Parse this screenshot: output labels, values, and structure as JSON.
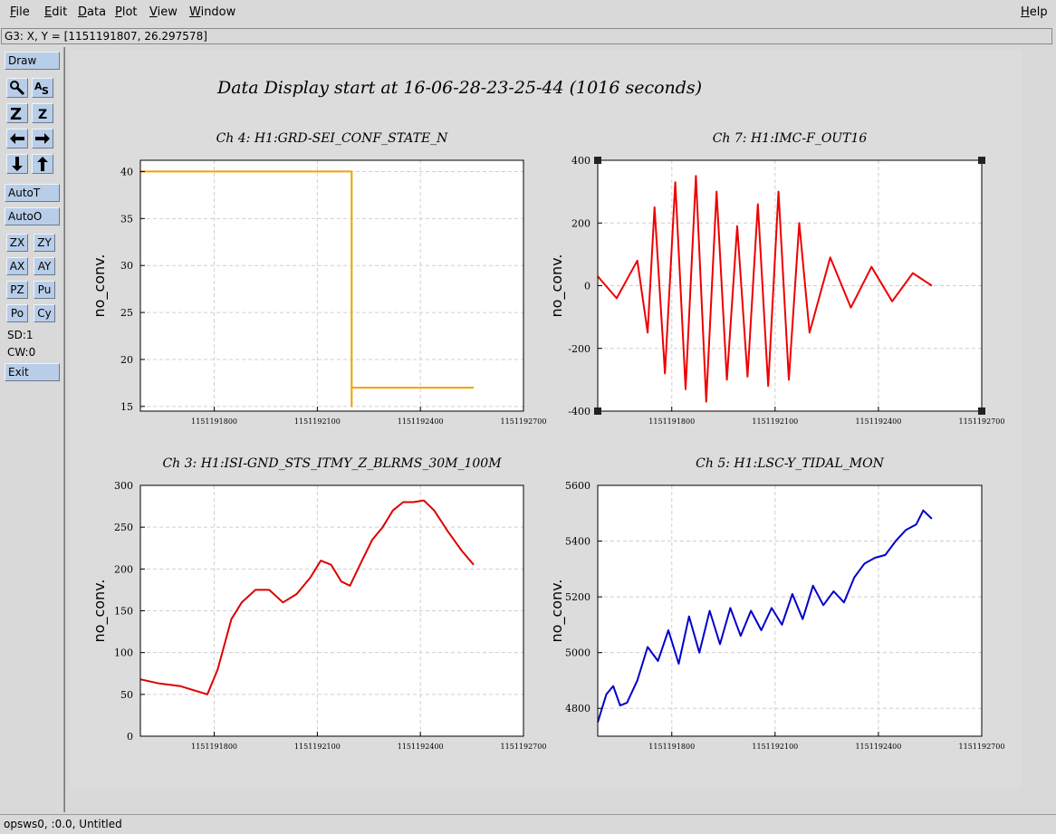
{
  "menu": {
    "items": [
      {
        "key": "F",
        "rest": "ile"
      },
      {
        "key": "E",
        "rest": "dit"
      },
      {
        "key": "D",
        "rest": "ata"
      },
      {
        "key": "P",
        "rest": "lot"
      },
      {
        "key": "V",
        "rest": "iew"
      },
      {
        "key": "W",
        "rest": "indow"
      }
    ],
    "help": {
      "key": "H",
      "rest": "elp"
    }
  },
  "coord_readout": "G3: X, Y = [1151191807, 26.297578]",
  "toolbar": {
    "draw": "Draw",
    "autot": "AutoT",
    "autoo": "AutoO",
    "zx": "ZX",
    "zy": "ZY",
    "ax": "AX",
    "ay": "AY",
    "pz": "PZ",
    "pu": "Pu",
    "po": "Po",
    "cy": "Cy",
    "sd": "SD:1",
    "cw": "CW:0",
    "exit": "Exit",
    "icons": [
      "zoom-icon",
      "autoscale-icon",
      "zoom-in-icon",
      "zoom-out-icon",
      "arrow-left-icon",
      "arrow-right-icon",
      "arrow-down-icon",
      "arrow-up-icon"
    ]
  },
  "display_title": "Data Display start at 16-06-28-23-25-44 (1016 seconds)",
  "status": "opsws0, :0.0, Untitled",
  "chart_data": [
    {
      "type": "line",
      "title": "Ch 4: H1:GRD-SEI_CONF_STATE_N",
      "ylabel": "no_conv.",
      "color": "#f2a000",
      "xlim": [
        1151191585,
        1151192700
      ],
      "ylim": [
        14.5,
        41.2
      ],
      "xticks": [
        1151191800,
        1151192100,
        1151192400,
        1151192700
      ],
      "yticks": [
        15,
        20,
        25,
        30,
        35,
        40
      ],
      "series": [
        {
          "x": [
            1151191585,
            1151192200,
            1151192200,
            1151192200,
            1151192555
          ],
          "y": [
            40,
            40,
            15,
            17,
            17
          ]
        }
      ]
    },
    {
      "type": "line",
      "title": "Ch 7: H1:IMC-F_OUT16",
      "ylabel": "no_conv.",
      "color": "#ee0000",
      "selected": true,
      "xlim": [
        1151191585,
        1151192700
      ],
      "ylim": [
        -400,
        400
      ],
      "xticks": [
        1151191800,
        1151192100,
        1151192400,
        1151192700
      ],
      "yticks": [
        -400,
        -200,
        0,
        200,
        400
      ],
      "series": [
        {
          "x": [
            1151191585,
            1151191640,
            1151191700,
            1151191730,
            1151191750,
            1151191780,
            1151191810,
            1151191840,
            1151191870,
            1151191900,
            1151191930,
            1151191960,
            1151191990,
            1151192020,
            1151192050,
            1151192080,
            1151192110,
            1151192140,
            1151192170,
            1151192200,
            1151192260,
            1151192320,
            1151192380,
            1151192440,
            1151192500,
            1151192555
          ],
          "y": [
            30,
            -40,
            80,
            -150,
            250,
            -280,
            330,
            -330,
            350,
            -370,
            300,
            -300,
            190,
            -290,
            260,
            -320,
            300,
            -300,
            200,
            -150,
            90,
            -70,
            60,
            -50,
            40,
            0
          ]
        }
      ]
    },
    {
      "type": "line",
      "title": "Ch 3: H1:ISI-GND_STS_ITMY_Z_BLRMS_30M_100M",
      "ylabel": "no_conv.",
      "color": "#dd0000",
      "xlim": [
        1151191585,
        1151192700
      ],
      "ylim": [
        0,
        300
      ],
      "xticks": [
        1151191800,
        1151192100,
        1151192400,
        1151192700
      ],
      "yticks": [
        0,
        50,
        100,
        150,
        200,
        250,
        300
      ],
      "series": [
        {
          "x": [
            1151191585,
            1151191640,
            1151191700,
            1151191780,
            1151191810,
            1151191850,
            1151191880,
            1151191920,
            1151191960,
            1151192000,
            1151192040,
            1151192080,
            1151192110,
            1151192140,
            1151192170,
            1151192195,
            1151192230,
            1151192260,
            1151192290,
            1151192320,
            1151192350,
            1151192380,
            1151192410,
            1151192440,
            1151192480,
            1151192520,
            1151192555
          ],
          "y": [
            68,
            63,
            60,
            50,
            80,
            140,
            160,
            175,
            175,
            160,
            170,
            190,
            210,
            205,
            185,
            180,
            210,
            235,
            250,
            270,
            280,
            280,
            282,
            270,
            245,
            222,
            205
          ]
        }
      ]
    },
    {
      "type": "line",
      "title": "Ch 5: H1:LSC-Y_TIDAL_MON",
      "ylabel": "no_conv.",
      "color": "#0000cc",
      "xlim": [
        1151191585,
        1151192700
      ],
      "ylim": [
        4700,
        5600
      ],
      "xticks": [
        1151191800,
        1151192100,
        1151192400,
        1151192700
      ],
      "yticks": [
        4800,
        5000,
        5200,
        5400,
        5600
      ],
      "series": [
        {
          "x": [
            1151191585,
            1151191610,
            1151191630,
            1151191650,
            1151191670,
            1151191700,
            1151191730,
            1151191760,
            1151191790,
            1151191820,
            1151191850,
            1151191880,
            1151191910,
            1151191940,
            1151191970,
            1151192000,
            1151192030,
            1151192060,
            1151192090,
            1151192120,
            1151192150,
            1151192180,
            1151192210,
            1151192240,
            1151192270,
            1151192300,
            1151192330,
            1151192360,
            1151192390,
            1151192420,
            1151192450,
            1151192480,
            1151192510,
            1151192530,
            1151192555
          ],
          "y": [
            4750,
            4850,
            4880,
            4810,
            4820,
            4900,
            5020,
            4970,
            5080,
            4960,
            5130,
            5000,
            5150,
            5030,
            5160,
            5060,
            5150,
            5080,
            5160,
            5100,
            5210,
            5120,
            5240,
            5170,
            5220,
            5180,
            5270,
            5320,
            5340,
            5350,
            5400,
            5440,
            5460,
            5510,
            5480
          ]
        }
      ]
    }
  ]
}
